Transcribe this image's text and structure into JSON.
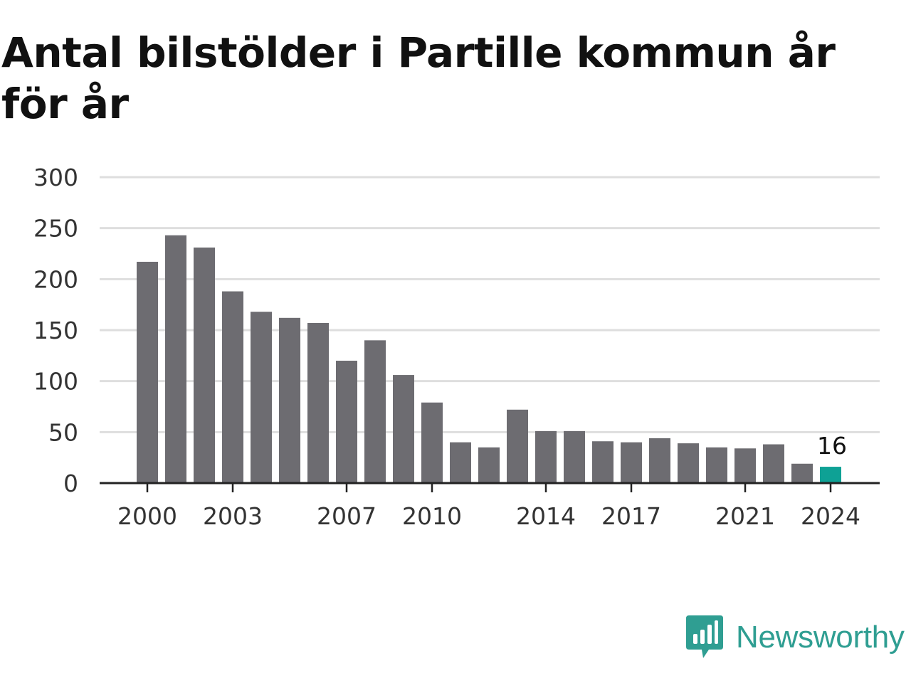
{
  "title": "Antal bilstölder i Partille kommun år för år",
  "brand": {
    "name": "Newsworthy",
    "icon": "newsworthy-logo-icon",
    "color": "#2f9e92"
  },
  "colors": {
    "bar": "#6d6c71",
    "highlight": "#0ea195",
    "grid": "#dedede",
    "axis": "#222222"
  },
  "chart_data": {
    "type": "bar",
    "title": "Antal bilstölder i Partille kommun år för år",
    "xlabel": "",
    "ylabel": "",
    "categories": [
      "2000",
      "2001",
      "2002",
      "2003",
      "2004",
      "2005",
      "2006",
      "2007",
      "2008",
      "2009",
      "2010",
      "2011",
      "2012",
      "2013",
      "2014",
      "2015",
      "2016",
      "2017",
      "2018",
      "2019",
      "2020",
      "2021",
      "2022",
      "2023",
      "2024"
    ],
    "values": [
      217,
      243,
      231,
      188,
      168,
      162,
      157,
      120,
      140,
      106,
      79,
      40,
      35,
      72,
      51,
      51,
      41,
      40,
      44,
      39,
      35,
      34,
      38,
      19,
      16
    ],
    "xtick_labels": [
      "2000",
      "2003",
      "2007",
      "2010",
      "2014",
      "2017",
      "2021",
      "2024"
    ],
    "yticks": [
      0,
      50,
      100,
      150,
      200,
      250,
      300
    ],
    "ylim": [
      0,
      300
    ],
    "grid": true,
    "highlight_category": "2024",
    "annotations": [
      {
        "category": "2024",
        "text": "16"
      }
    ]
  }
}
